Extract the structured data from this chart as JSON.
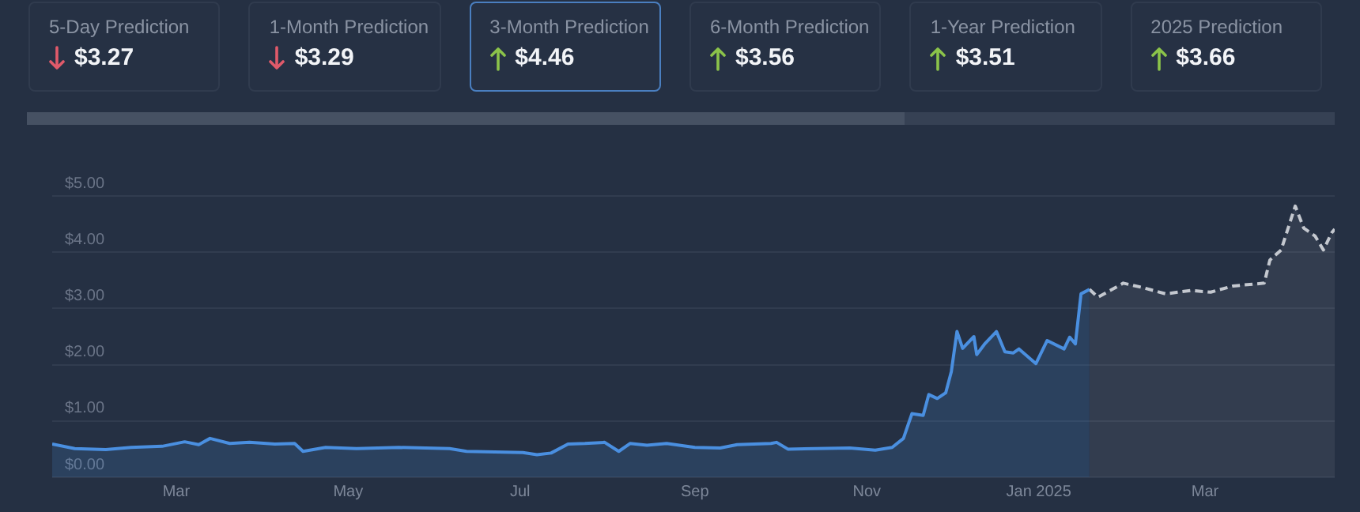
{
  "chart_data": [
    {
      "type": "other",
      "annotations": [
        "5-Day Prediction",
        "$3.27",
        "1-Month Prediction",
        "$3.29",
        "3-Month Prediction",
        "$4.46",
        "6-Month Prediction",
        "$3.56",
        "1-Year Prediction",
        "$3.51",
        "2025 Prediction",
        "$3.66"
      ]
    },
    {
      "type": "area",
      "legend": false,
      "grid": "y",
      "xlim": [
        "2024-01-17",
        "2025-04-16"
      ],
      "ylim": [
        0,
        5
      ],
      "xticks": [
        {
          "value": "2024-03-01",
          "label": "Mar"
        },
        {
          "value": "2024-05-01",
          "label": "May"
        },
        {
          "value": "2024-07-01",
          "label": "Jul"
        },
        {
          "value": "2024-09-01",
          "label": "Sep"
        },
        {
          "value": "2024-11-01",
          "label": "Nov"
        },
        {
          "value": "2025-01-01",
          "label": "Jan 2025"
        },
        {
          "value": "2025-03-01",
          "label": "Mar"
        }
      ],
      "yticks": [
        {
          "value": 0,
          "label": "$0.00"
        },
        {
          "value": 1,
          "label": "$1.00"
        },
        {
          "value": 2,
          "label": "$2.00"
        },
        {
          "value": 3,
          "label": "$3.00"
        },
        {
          "value": 4,
          "label": "$4.00"
        },
        {
          "value": 5,
          "label": "$5.00"
        }
      ],
      "series": [
        {
          "color": "#4a8fe0",
          "line_style": "solid",
          "x": [
            "2024-01-17",
            "2024-01-25",
            "2024-02-05",
            "2024-02-14",
            "2024-02-25",
            "2024-03-04",
            "2024-03-09",
            "2024-03-13",
            "2024-03-20",
            "2024-03-27",
            "2024-04-05",
            "2024-04-12",
            "2024-04-15",
            "2024-04-23",
            "2024-05-04",
            "2024-05-19",
            "2024-06-06",
            "2024-06-12",
            "2024-07-02",
            "2024-07-07",
            "2024-07-12",
            "2024-07-18",
            "2024-07-24",
            "2024-07-31",
            "2024-08-05",
            "2024-08-09",
            "2024-08-15",
            "2024-08-22",
            "2024-09-01",
            "2024-09-10",
            "2024-09-16",
            "2024-09-28",
            "2024-09-30",
            "2024-10-04",
            "2024-10-26",
            "2024-11-04",
            "2024-11-10",
            "2024-11-14",
            "2024-11-17",
            "2024-11-21",
            "2024-11-23",
            "2024-11-26",
            "2024-11-29",
            "2024-12-01",
            "2024-12-03",
            "2024-12-05",
            "2024-12-09",
            "2024-12-10",
            "2024-12-13",
            "2024-12-17",
            "2024-12-20",
            "2024-12-23",
            "2024-12-25",
            "2024-12-31",
            "2025-01-04",
            "2025-01-10",
            "2025-01-12",
            "2025-01-14",
            "2025-01-16",
            "2025-01-19"
          ],
          "values": [
            0.59,
            0.51,
            0.49,
            0.53,
            0.55,
            0.63,
            0.58,
            0.69,
            0.6,
            0.62,
            0.59,
            0.6,
            0.46,
            0.53,
            0.51,
            0.53,
            0.51,
            0.46,
            0.44,
            0.4,
            0.43,
            0.59,
            0.6,
            0.62,
            0.46,
            0.6,
            0.57,
            0.6,
            0.53,
            0.52,
            0.58,
            0.6,
            0.62,
            0.5,
            0.52,
            0.48,
            0.53,
            0.69,
            1.13,
            1.1,
            1.47,
            1.4,
            1.5,
            1.88,
            2.59,
            2.29,
            2.5,
            2.18,
            2.38,
            2.59,
            2.23,
            2.21,
            2.28,
            2.02,
            2.43,
            2.28,
            2.49,
            2.37,
            3.26,
            3.34
          ]
        },
        {
          "color": "#c4c8cf",
          "line_style": "dashed",
          "x": [
            "2025-01-19",
            "2025-01-22",
            "2025-01-31",
            "2025-02-07",
            "2025-02-15",
            "2025-02-24",
            "2025-03-03",
            "2025-03-11",
            "2025-03-22",
            "2025-03-24",
            "2025-03-28",
            "2025-04-02",
            "2025-04-05",
            "2025-04-09",
            "2025-04-12",
            "2025-04-15",
            "2025-04-16"
          ],
          "values": [
            3.34,
            3.2,
            3.45,
            3.37,
            3.26,
            3.32,
            3.29,
            3.4,
            3.45,
            3.86,
            4.04,
            4.82,
            4.43,
            4.29,
            4.04,
            4.35,
            4.41
          ]
        }
      ]
    }
  ]
}
